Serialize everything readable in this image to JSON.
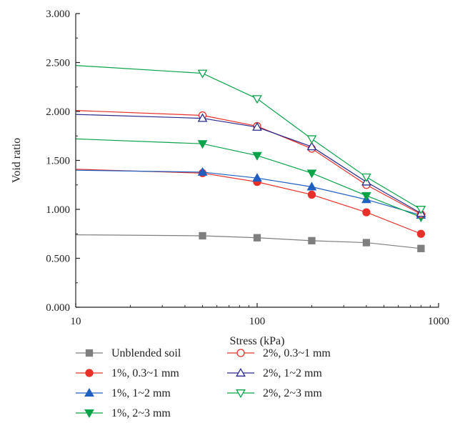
{
  "chart_data": {
    "type": "line",
    "xscale": "log",
    "xlabel": "Stress (kPa)",
    "ylabel": "Void ratio",
    "xlim": [
      10,
      1000
    ],
    "ylim": [
      0,
      3
    ],
    "x_ticks": [
      10,
      100,
      1000
    ],
    "x_tick_labels": [
      "10",
      "100",
      "1000"
    ],
    "y_ticks": [
      0,
      0.5,
      1.0,
      1.5,
      2.0,
      2.5,
      3.0
    ],
    "y_tick_labels": [
      "0.000",
      "0.500",
      "1.000",
      "1.500",
      "2.000",
      "2.500",
      "3.000"
    ],
    "grid": false,
    "legend_position": "bottom",
    "series": [
      {
        "name": "Unblended soil",
        "color": "#7f7f7f",
        "marker": "square",
        "filled": true,
        "x": [
          10,
          50,
          100,
          200,
          400,
          800
        ],
        "y": [
          0.74,
          0.73,
          0.71,
          0.68,
          0.66,
          0.6
        ]
      },
      {
        "name": "1%, 0.3~1 mm",
        "color": "#e8302a",
        "marker": "circle",
        "filled": true,
        "x": [
          10,
          50,
          100,
          200,
          400,
          800
        ],
        "y": [
          1.41,
          1.37,
          1.28,
          1.15,
          0.97,
          0.75
        ]
      },
      {
        "name": "1%, 1~2 mm",
        "color": "#1f5fbf",
        "marker": "triangle-up",
        "filled": true,
        "x": [
          10,
          50,
          100,
          200,
          400,
          800
        ],
        "y": [
          1.4,
          1.38,
          1.32,
          1.23,
          1.1,
          0.94
        ]
      },
      {
        "name": "1%, 2~3 mm",
        "color": "#0aa34a",
        "marker": "triangle-down",
        "filled": true,
        "x": [
          10,
          50,
          100,
          200,
          400,
          800
        ],
        "y": [
          1.72,
          1.67,
          1.55,
          1.37,
          1.14,
          0.92
        ]
      },
      {
        "name": "2%, 0.3~1 mm",
        "color": "#e8302a",
        "marker": "circle",
        "filled": false,
        "x": [
          10,
          50,
          100,
          200,
          400,
          800
        ],
        "y": [
          2.01,
          1.96,
          1.85,
          1.62,
          1.25,
          0.95
        ]
      },
      {
        "name": "2%, 1~2 mm",
        "color": "#2a2a8a",
        "marker": "triangle-up",
        "filled": false,
        "x": [
          10,
          50,
          100,
          200,
          400,
          800
        ],
        "y": [
          1.97,
          1.93,
          1.84,
          1.64,
          1.28,
          0.96
        ]
      },
      {
        "name": "2%, 2~3 mm",
        "color": "#0aa34a",
        "marker": "triangle-down",
        "filled": false,
        "x": [
          10,
          50,
          100,
          200,
          400,
          800
        ],
        "y": [
          2.47,
          2.39,
          2.13,
          1.72,
          1.33,
          1.0
        ]
      }
    ]
  }
}
